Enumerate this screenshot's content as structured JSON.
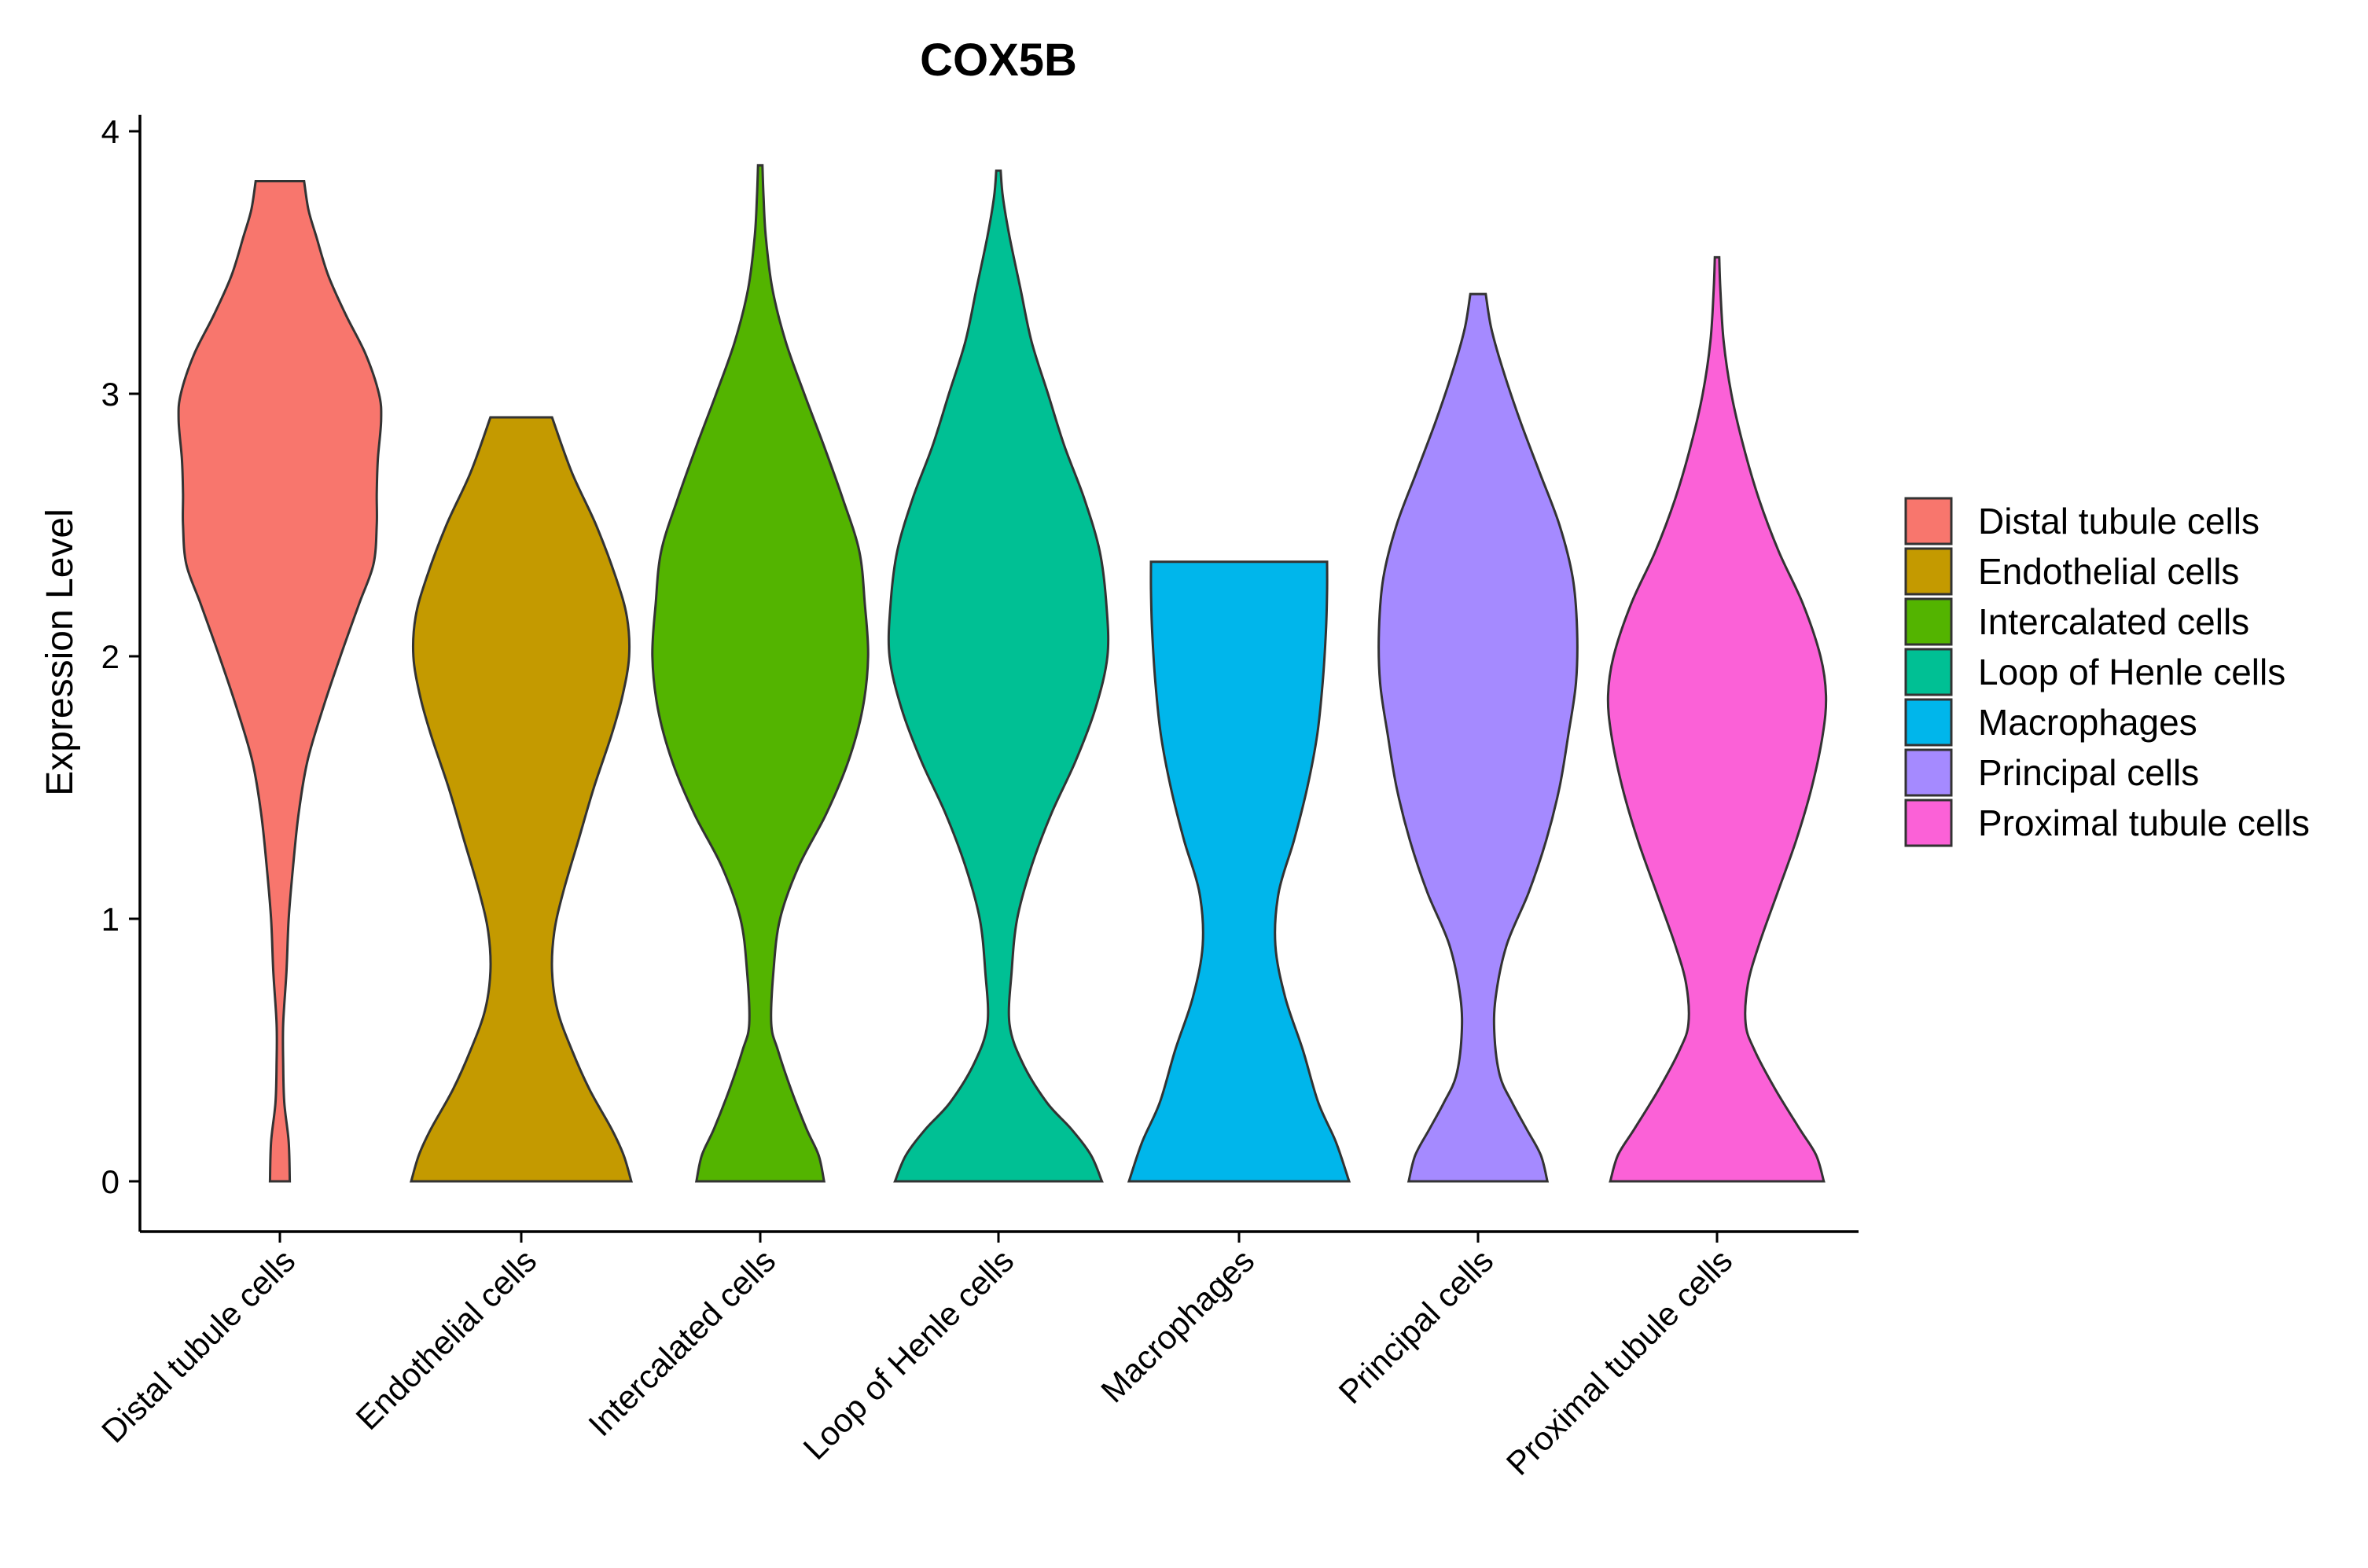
{
  "chart_data": {
    "type": "violin",
    "title": "COX5B",
    "xlabel": "",
    "ylabel": "Expression Level",
    "ylim": [
      -0.2,
      4.07
    ],
    "yticks": [
      0,
      1,
      2,
      3,
      4
    ],
    "grid": false,
    "legend_position": "right",
    "categories": [
      "Distal tubule cells",
      "Endothelial cells",
      "Intercalated cells",
      "Loop of Henle cells",
      "Macrophages",
      "Principal cells",
      "Proximal tubule cells"
    ],
    "series": [
      {
        "name": "Distal tubule cells",
        "color": "#F8766D",
        "max": 3.81,
        "density": [
          [
            0,
            0.09
          ],
          [
            0.15,
            0.08
          ],
          [
            0.3,
            0.04
          ],
          [
            0.45,
            0.03
          ],
          [
            0.6,
            0.03
          ],
          [
            0.8,
            0.06
          ],
          [
            1.0,
            0.08
          ],
          [
            1.2,
            0.12
          ],
          [
            1.4,
            0.17
          ],
          [
            1.6,
            0.25
          ],
          [
            1.8,
            0.39
          ],
          [
            2.0,
            0.55
          ],
          [
            2.2,
            0.72
          ],
          [
            2.35,
            0.85
          ],
          [
            2.5,
            0.88
          ],
          [
            2.62,
            0.88
          ],
          [
            2.75,
            0.89
          ],
          [
            2.9,
            0.92
          ],
          [
            3.0,
            0.9
          ],
          [
            3.15,
            0.78
          ],
          [
            3.3,
            0.6
          ],
          [
            3.45,
            0.44
          ],
          [
            3.6,
            0.33
          ],
          [
            3.7,
            0.26
          ],
          [
            3.81,
            0.22
          ]
        ]
      },
      {
        "name": "Endothelial cells",
        "color": "#C49A00",
        "max": 2.91,
        "density": [
          [
            0,
            1.0
          ],
          [
            0.1,
            0.93
          ],
          [
            0.2,
            0.82
          ],
          [
            0.35,
            0.62
          ],
          [
            0.5,
            0.46
          ],
          [
            0.65,
            0.33
          ],
          [
            0.8,
            0.28
          ],
          [
            0.95,
            0.3
          ],
          [
            1.1,
            0.38
          ],
          [
            1.3,
            0.52
          ],
          [
            1.5,
            0.66
          ],
          [
            1.7,
            0.82
          ],
          [
            1.85,
            0.92
          ],
          [
            2.0,
            0.98
          ],
          [
            2.15,
            0.96
          ],
          [
            2.3,
            0.86
          ],
          [
            2.5,
            0.68
          ],
          [
            2.7,
            0.46
          ],
          [
            2.91,
            0.28
          ]
        ]
      },
      {
        "name": "Intercalated cells",
        "color": "#53B400",
        "max": 3.87,
        "density": [
          [
            0,
            0.58
          ],
          [
            0.1,
            0.53
          ],
          [
            0.2,
            0.42
          ],
          [
            0.35,
            0.28
          ],
          [
            0.5,
            0.16
          ],
          [
            0.6,
            0.1
          ],
          [
            0.8,
            0.12
          ],
          [
            1.0,
            0.18
          ],
          [
            1.2,
            0.35
          ],
          [
            1.4,
            0.6
          ],
          [
            1.6,
            0.8
          ],
          [
            1.8,
            0.93
          ],
          [
            2.0,
            0.98
          ],
          [
            2.2,
            0.95
          ],
          [
            2.4,
            0.9
          ],
          [
            2.6,
            0.75
          ],
          [
            2.8,
            0.58
          ],
          [
            3.0,
            0.4
          ],
          [
            3.2,
            0.23
          ],
          [
            3.4,
            0.11
          ],
          [
            3.6,
            0.05
          ],
          [
            3.75,
            0.03
          ],
          [
            3.87,
            0.02
          ]
        ]
      },
      {
        "name": "Loop of Henle cells",
        "color": "#00C094",
        "max": 3.85,
        "density": [
          [
            0,
            0.94
          ],
          [
            0.1,
            0.84
          ],
          [
            0.2,
            0.66
          ],
          [
            0.3,
            0.44
          ],
          [
            0.45,
            0.22
          ],
          [
            0.6,
            0.1
          ],
          [
            0.8,
            0.12
          ],
          [
            1.0,
            0.17
          ],
          [
            1.2,
            0.3
          ],
          [
            1.4,
            0.48
          ],
          [
            1.6,
            0.7
          ],
          [
            1.8,
            0.88
          ],
          [
            2.0,
            0.99
          ],
          [
            2.2,
            0.98
          ],
          [
            2.4,
            0.92
          ],
          [
            2.6,
            0.78
          ],
          [
            2.8,
            0.6
          ],
          [
            3.0,
            0.45
          ],
          [
            3.2,
            0.3
          ],
          [
            3.4,
            0.2
          ],
          [
            3.6,
            0.1
          ],
          [
            3.75,
            0.04
          ],
          [
            3.85,
            0.02
          ]
        ]
      },
      {
        "name": "Macrophages",
        "color": "#00B6EB",
        "max": 2.36,
        "density": [
          [
            0,
            1.0
          ],
          [
            0.15,
            0.88
          ],
          [
            0.3,
            0.72
          ],
          [
            0.5,
            0.58
          ],
          [
            0.7,
            0.42
          ],
          [
            0.9,
            0.33
          ],
          [
            1.1,
            0.36
          ],
          [
            1.3,
            0.5
          ],
          [
            1.5,
            0.62
          ],
          [
            1.7,
            0.71
          ],
          [
            1.9,
            0.76
          ],
          [
            2.1,
            0.79
          ],
          [
            2.25,
            0.8
          ],
          [
            2.36,
            0.8
          ]
        ]
      },
      {
        "name": "Principal cells",
        "color": "#A58AFF",
        "max": 3.38,
        "density": [
          [
            0,
            0.63
          ],
          [
            0.1,
            0.57
          ],
          [
            0.2,
            0.44
          ],
          [
            0.3,
            0.31
          ],
          [
            0.4,
            0.2
          ],
          [
            0.55,
            0.15
          ],
          [
            0.7,
            0.16
          ],
          [
            0.9,
            0.26
          ],
          [
            1.1,
            0.46
          ],
          [
            1.3,
            0.62
          ],
          [
            1.5,
            0.74
          ],
          [
            1.7,
            0.82
          ],
          [
            1.9,
            0.89
          ],
          [
            2.1,
            0.9
          ],
          [
            2.3,
            0.86
          ],
          [
            2.5,
            0.74
          ],
          [
            2.7,
            0.56
          ],
          [
            2.9,
            0.38
          ],
          [
            3.1,
            0.22
          ],
          [
            3.25,
            0.12
          ],
          [
            3.38,
            0.07
          ]
        ]
      },
      {
        "name": "Proximal tubule cells",
        "color": "#FB61D7",
        "max": 3.52,
        "density": [
          [
            0,
            0.97
          ],
          [
            0.1,
            0.9
          ],
          [
            0.2,
            0.75
          ],
          [
            0.35,
            0.53
          ],
          [
            0.5,
            0.34
          ],
          [
            0.6,
            0.26
          ],
          [
            0.75,
            0.28
          ],
          [
            0.9,
            0.38
          ],
          [
            1.1,
            0.55
          ],
          [
            1.3,
            0.72
          ],
          [
            1.5,
            0.86
          ],
          [
            1.7,
            0.96
          ],
          [
            1.85,
            0.99
          ],
          [
            2.0,
            0.94
          ],
          [
            2.2,
            0.78
          ],
          [
            2.4,
            0.56
          ],
          [
            2.6,
            0.38
          ],
          [
            2.8,
            0.24
          ],
          [
            3.0,
            0.13
          ],
          [
            3.2,
            0.06
          ],
          [
            3.4,
            0.03
          ],
          [
            3.52,
            0.02
          ]
        ]
      }
    ]
  }
}
